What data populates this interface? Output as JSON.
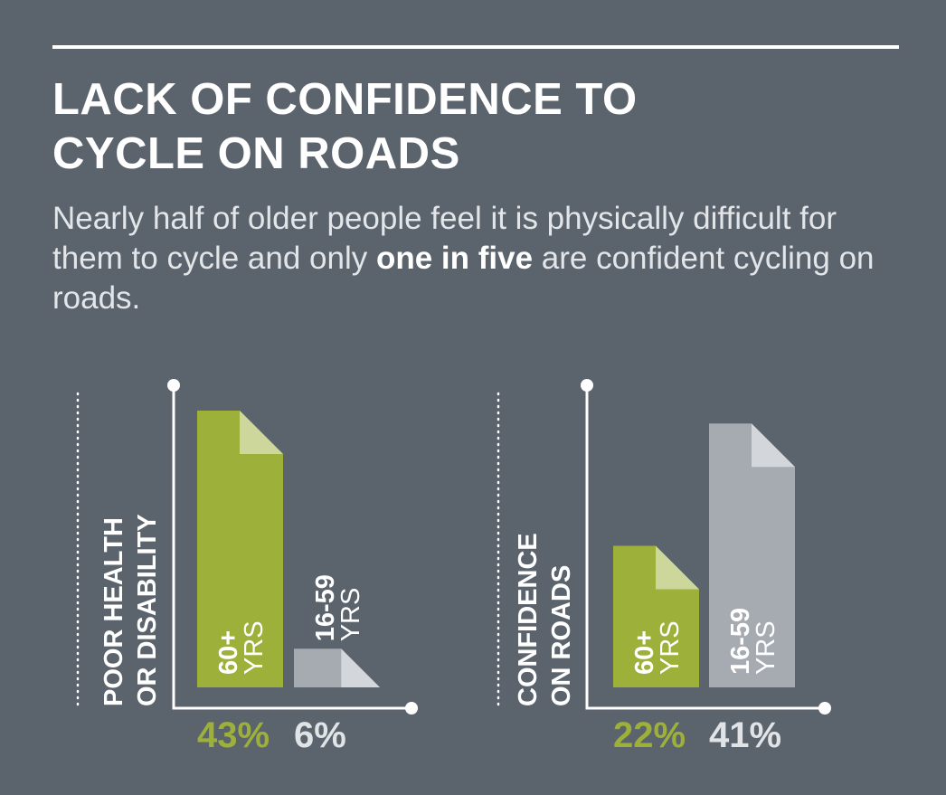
{
  "title_lines": [
    "LACK OF CONFIDENCE TO",
    "CYCLE ON ROADS"
  ],
  "subtitle": {
    "part1": "Nearly half of older people feel it is physically difficult for them to cycle and only ",
    "bold1": "one in five",
    "part2": " are confident cycling on roads."
  },
  "colors": {
    "background": "#5b636d",
    "green": "#9db03a",
    "green_fold": "#cdd69b",
    "grey": "#a6abb2",
    "grey_fold": "#d3d6da",
    "pct_grey": "#e1e4e7"
  },
  "chart_data": [
    {
      "type": "bar",
      "category_label": [
        "POOR HEALTH",
        "OR DISABILITY"
      ],
      "series": [
        {
          "age_top": "60+",
          "age_bottom": "YRS",
          "value": 43,
          "value_label": "43%",
          "color": "green"
        },
        {
          "age_top": "16-59",
          "age_bottom": "YRS",
          "value": 6,
          "value_label": "6%",
          "color": "grey"
        }
      ],
      "ylim": [
        0,
        50
      ]
    },
    {
      "type": "bar",
      "category_label": [
        "CONFIDENCE",
        "ON ROADS"
      ],
      "series": [
        {
          "age_top": "60+",
          "age_bottom": "YRS",
          "value": 22,
          "value_label": "22%",
          "color": "green"
        },
        {
          "age_top": "16-59",
          "age_bottom": "YRS",
          "value": 41,
          "value_label": "41%",
          "color": "grey"
        }
      ],
      "ylim": [
        0,
        50
      ]
    }
  ]
}
